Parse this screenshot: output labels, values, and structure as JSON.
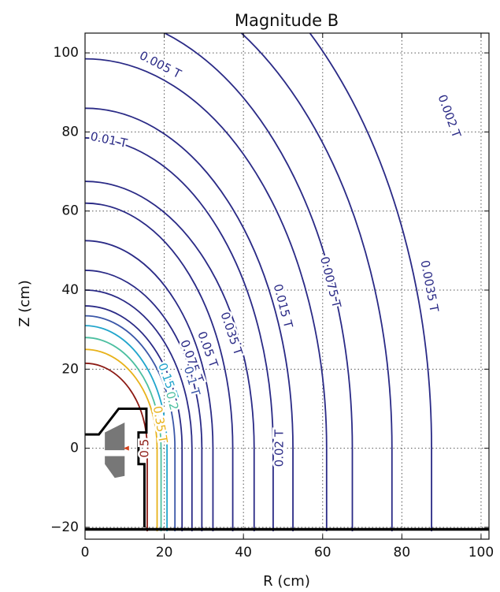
{
  "chart_data": {
    "type": "contour",
    "title": "Magnitude B",
    "xlabel": "R (cm)",
    "ylabel": "Z (cm)",
    "xlim": [
      0,
      102
    ],
    "ylim": [
      -23,
      105
    ],
    "x_ticks": [
      0,
      20,
      40,
      60,
      80,
      100
    ],
    "y_ticks": [
      -20,
      0,
      20,
      40,
      60,
      80,
      100
    ],
    "grid": true,
    "grid_style": "dotted",
    "contours": [
      {
        "label": "0.002 T",
        "color": "#2a2a86",
        "r_axis": 87.5,
        "z_top": 138,
        "z_bottom": -21,
        "labels_at": [
          {
            "r": 92,
            "z": 84
          }
        ]
      },
      {
        "label": "0.0035 T",
        "color": "#2a2a86",
        "r_axis": 77.5,
        "z_top": 122,
        "z_bottom": -21,
        "labels_at": [
          {
            "r": 87,
            "z": 41
          }
        ]
      },
      {
        "label": "",
        "color": "#2a2a86",
        "r_axis": 67.5,
        "z_top": 110,
        "z_bottom": -21,
        "labels_at": []
      },
      {
        "label": "0.005 T",
        "color": "#2a2a86",
        "r_axis": 61,
        "z_top": 98.5,
        "z_bottom": -21,
        "labels_at": [
          {
            "r": 19,
            "z": 97
          }
        ]
      },
      {
        "label": "0.0075 T",
        "color": "#2a2a86",
        "r_axis": 52.5,
        "z_top": 86,
        "z_bottom": -21,
        "labels_at": [
          {
            "r": 62,
            "z": 42
          }
        ]
      },
      {
        "label": "0.01 T",
        "color": "#2a2a86",
        "r_axis": 47.5,
        "z_top": 78.5,
        "z_bottom": -21,
        "labels_at": [
          {
            "r": 6,
            "z": 78
          }
        ]
      },
      {
        "label": "0.02 T",
        "color": "#2a2a86",
        "r_axis": 42.7,
        "z_top": 67.5,
        "z_bottom": -21,
        "labels_at": [
          {
            "r": 49,
            "z": 0
          }
        ]
      },
      {
        "label": "0.015 T",
        "color": "#2a2a86",
        "r_axis": 37.3,
        "z_top": 62,
        "z_bottom": -21,
        "labels_at": [
          {
            "r": 50,
            "z": 36
          }
        ]
      },
      {
        "label": "",
        "color": "#2a2a86",
        "r_axis": 32.3,
        "z_top": 52.5,
        "z_bottom": -21,
        "labels_at": []
      },
      {
        "label": "0.035 T",
        "color": "#2a2a86",
        "r_axis": 29.5,
        "z_top": 45,
        "z_bottom": -21,
        "labels_at": [
          {
            "r": 37,
            "z": 29
          }
        ]
      },
      {
        "label": "0.05 T",
        "color": "#2a2a86",
        "r_axis": 27,
        "z_top": 40,
        "z_bottom": -21,
        "labels_at": [
          {
            "r": 31,
            "z": 25
          }
        ]
      },
      {
        "label": "0.075 T",
        "color": "#2a2a86",
        "r_axis": 24.5,
        "z_top": 36,
        "z_bottom": -21,
        "labels_at": [
          {
            "r": 27,
            "z": 22
          }
        ]
      },
      {
        "label": "0.1 T",
        "color": "#3b57a8",
        "r_axis": 22.7,
        "z_top": 33.5,
        "z_bottom": -21,
        "labels_at": [
          {
            "r": 27,
            "z": 17
          }
        ]
      },
      {
        "label": "0.15 T",
        "color": "#21a5cc",
        "r_axis": 20.7,
        "z_top": 31,
        "z_bottom": -21,
        "labels_at": [
          {
            "r": 21,
            "z": 17
          }
        ]
      },
      {
        "label": "0.2",
        "color": "#4cbfa0",
        "r_axis": 19.2,
        "z_top": 28,
        "z_bottom": -21,
        "labels_at": [
          {
            "r": 22,
            "z": 12
          }
        ]
      },
      {
        "label": "0.35 T",
        "color": "#e8b21a",
        "r_axis": 18.2,
        "z_top": 25,
        "z_bottom": -21,
        "labels_at": [
          {
            "r": 19,
            "z": 6
          }
        ]
      },
      {
        "label": "0.5",
        "color": "#8c1a14",
        "r_axis": 15.7,
        "z_top": 21.5,
        "z_bottom": -21,
        "labels_at": [
          {
            "r": 15,
            "z": 0
          }
        ]
      }
    ],
    "geometry": {
      "outline": [
        [
          0,
          3.5
        ],
        [
          3.5,
          3.5
        ],
        [
          8.5,
          10
        ],
        [
          15.5,
          10
        ],
        [
          15.5,
          4
        ],
        [
          13.5,
          4
        ],
        [
          13.5,
          -4
        ],
        [
          15,
          -4
        ],
        [
          15,
          -20
        ]
      ],
      "floor_z": -20.5,
      "blocks": [
        [
          [
            5,
            4
          ],
          [
            10,
            6.5
          ],
          [
            10,
            -0.5
          ],
          [
            5,
            -0.5
          ]
        ],
        [
          [
            5,
            -2
          ],
          [
            10,
            -2
          ],
          [
            10,
            -7
          ],
          [
            7.5,
            -7.5
          ],
          [
            5,
            -4
          ]
        ]
      ],
      "marker": {
        "r": 10.5,
        "z": 0,
        "color": "#d4401a"
      }
    }
  }
}
